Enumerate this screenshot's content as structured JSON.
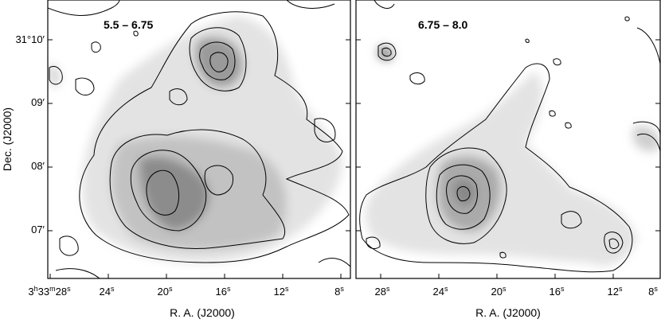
{
  "figure": {
    "y_axis_title": "Dec. (J2000)",
    "y_ticks": [
      "31°10′",
      "09′",
      "08′",
      "07′"
    ],
    "panels": [
      {
        "label": "5.5 – 6.75",
        "x_axis_title": "R. A. (J2000)",
        "x_ticks": [
          {
            "main": "3",
            "sup1": "h",
            "mid": "33",
            "sup2": "m",
            "last": "28",
            "sup3": "s"
          },
          {
            "main": "24",
            "sup3": "s"
          },
          {
            "main": "20",
            "sup3": "s"
          },
          {
            "main": "16",
            "sup3": "s"
          },
          {
            "main": "12",
            "sup3": "s"
          },
          {
            "main": "8",
            "sup3": "s"
          }
        ]
      },
      {
        "label": "6.75 – 8.0",
        "x_axis_title": "R. A. (J2000)",
        "x_ticks": [
          {
            "main": "28",
            "sup3": "s"
          },
          {
            "main": "24",
            "sup3": "s"
          },
          {
            "main": "20",
            "sup3": "s"
          },
          {
            "main": "16",
            "sup3": "s"
          },
          {
            "main": "12",
            "sup3": "s"
          },
          {
            "main": "8",
            "sup3": "s"
          }
        ]
      }
    ]
  }
}
